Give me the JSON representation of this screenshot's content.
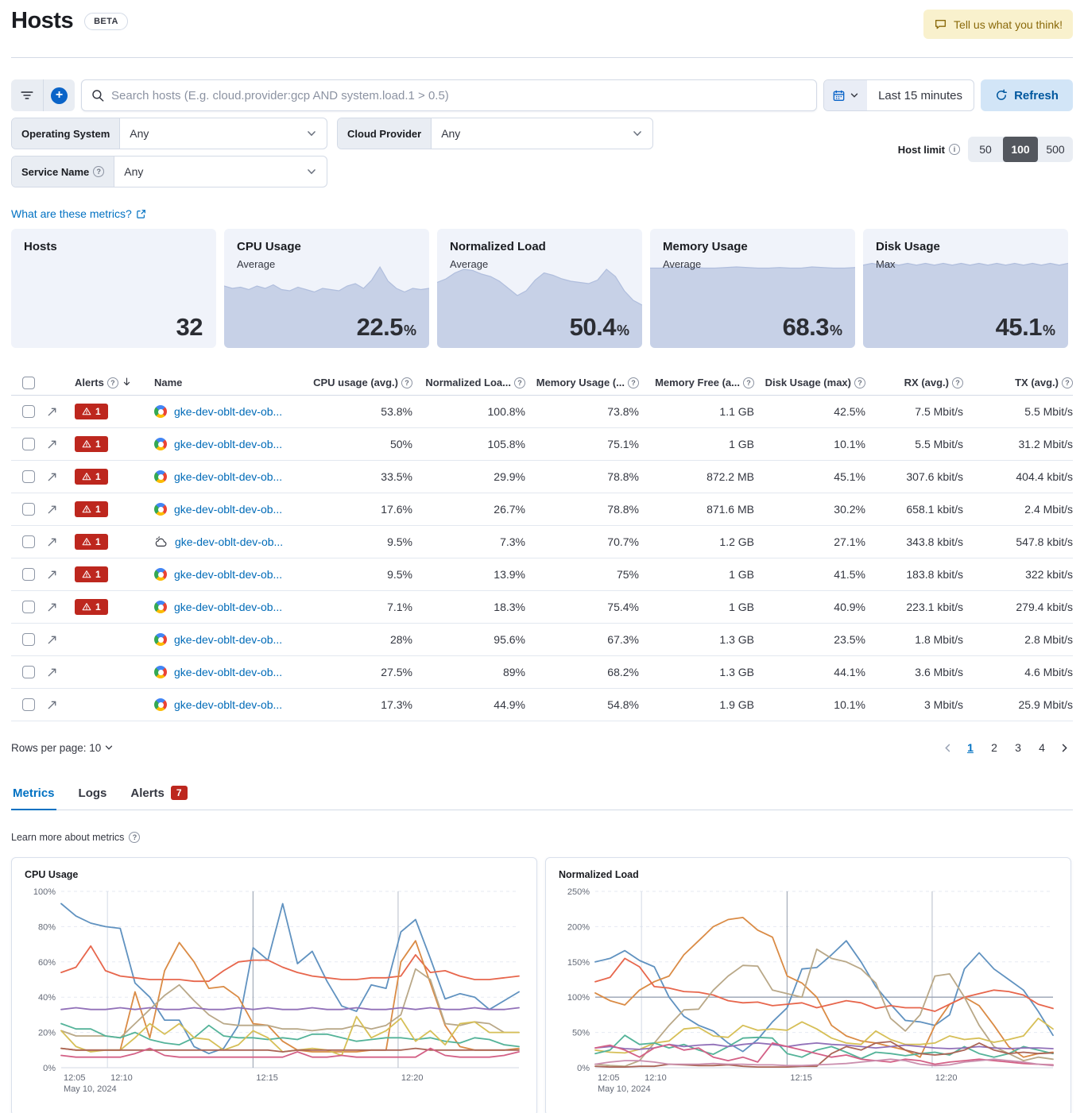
{
  "header": {
    "title": "Hosts",
    "beta": "BETA",
    "feedback": "Tell us what you think!"
  },
  "controls": {
    "search_placeholder": "Search hosts (E.g. cloud.provider:gcp AND system.load.1 > 0.5)",
    "time_range": "Last 15 minutes",
    "refresh_label": "Refresh",
    "filters": [
      {
        "label": "Operating System",
        "value": "Any"
      },
      {
        "label": "Cloud Provider",
        "value": "Any"
      },
      {
        "label": "Service Name",
        "value": "Any"
      }
    ],
    "host_limit": {
      "label": "Host limit",
      "options": [
        "50",
        "100",
        "500"
      ],
      "selected": "100"
    }
  },
  "metrics_link": "What are these metrics?",
  "kpis": [
    {
      "title": "Hosts",
      "subtitle": "",
      "value": "32",
      "unit": "",
      "spark": []
    },
    {
      "title": "CPU Usage",
      "subtitle": "Average",
      "value": "22.5",
      "unit": "%",
      "spark": [
        0.52,
        0.5,
        0.51,
        0.49,
        0.52,
        0.5,
        0.53,
        0.49,
        0.48,
        0.51,
        0.49,
        0.47,
        0.5,
        0.49,
        0.48,
        0.52,
        0.54,
        0.5,
        0.57,
        0.68,
        0.56,
        0.5,
        0.47,
        0.5,
        0.49,
        0.5
      ]
    },
    {
      "title": "Normalized Load",
      "subtitle": "Average",
      "value": "50.4",
      "unit": "%",
      "spark": [
        0.55,
        0.58,
        0.63,
        0.66,
        0.65,
        0.62,
        0.6,
        0.56,
        0.5,
        0.44,
        0.48,
        0.57,
        0.63,
        0.61,
        0.58,
        0.56,
        0.55,
        0.54,
        0.57,
        0.66,
        0.6,
        0.48,
        0.4,
        0.36
      ]
    },
    {
      "title": "Memory Usage",
      "subtitle": "Average",
      "value": "68.3",
      "unit": "%",
      "spark": [
        0.67,
        0.67,
        0.675,
        0.68,
        0.675,
        0.67,
        0.67,
        0.675,
        0.68,
        0.675,
        0.67,
        0.67,
        0.675,
        0.67,
        0.67,
        0.68,
        0.675,
        0.67,
        0.67,
        0.675
      ]
    },
    {
      "title": "Disk Usage",
      "subtitle": "Max",
      "value": "45.1",
      "unit": "%",
      "spark": [
        0.695,
        0.71,
        0.695,
        0.71,
        0.695,
        0.71,
        0.695,
        0.71,
        0.695,
        0.71,
        0.695,
        0.71,
        0.695,
        0.71,
        0.695,
        0.71,
        0.695,
        0.71,
        0.695,
        0.71,
        0.695,
        0.71,
        0.695,
        0.71
      ]
    }
  ],
  "table": {
    "columns": [
      "Alerts",
      "Name",
      "CPU usage (avg.)",
      "Normalized Loa...",
      "Memory Usage (...",
      "Memory Free (a...",
      "Disk Usage (max)",
      "RX (avg.)",
      "TX (avg.)"
    ],
    "rows": [
      {
        "alerts": "1",
        "provider": "gcp",
        "name": "gke-dev-oblt-dev-ob...",
        "cpu": "53.8%",
        "load": "100.8%",
        "mem": "73.8%",
        "free": "1.1 GB",
        "disk": "42.5%",
        "rx": "7.5 Mbit/s",
        "tx": "5.5 Mbit/s"
      },
      {
        "alerts": "1",
        "provider": "gcp",
        "name": "gke-dev-oblt-dev-ob...",
        "cpu": "50%",
        "load": "105.8%",
        "mem": "75.1%",
        "free": "1 GB",
        "disk": "10.1%",
        "rx": "5.5 Mbit/s",
        "tx": "31.2 Mbit/s"
      },
      {
        "alerts": "1",
        "provider": "gcp",
        "name": "gke-dev-oblt-dev-ob...",
        "cpu": "33.5%",
        "load": "29.9%",
        "mem": "78.8%",
        "free": "872.2 MB",
        "disk": "45.1%",
        "rx": "307.6 kbit/s",
        "tx": "404.4 kbit/s"
      },
      {
        "alerts": "1",
        "provider": "gcp",
        "name": "gke-dev-oblt-dev-ob...",
        "cpu": "17.6%",
        "load": "26.7%",
        "mem": "78.8%",
        "free": "871.6 MB",
        "disk": "30.2%",
        "rx": "658.1 kbit/s",
        "tx": "2.4 Mbit/s"
      },
      {
        "alerts": "1",
        "provider": "sketch",
        "name": "gke-dev-oblt-dev-ob...",
        "cpu": "9.5%",
        "load": "7.3%",
        "mem": "70.7%",
        "free": "1.2 GB",
        "disk": "27.1%",
        "rx": "343.8 kbit/s",
        "tx": "547.8 kbit/s"
      },
      {
        "alerts": "1",
        "provider": "gcp",
        "name": "gke-dev-oblt-dev-ob...",
        "cpu": "9.5%",
        "load": "13.9%",
        "mem": "75%",
        "free": "1 GB",
        "disk": "41.5%",
        "rx": "183.8 kbit/s",
        "tx": "322 kbit/s"
      },
      {
        "alerts": "1",
        "provider": "gcp",
        "name": "gke-dev-oblt-dev-ob...",
        "cpu": "7.1%",
        "load": "18.3%",
        "mem": "75.4%",
        "free": "1 GB",
        "disk": "40.9%",
        "rx": "223.1 kbit/s",
        "tx": "279.4 kbit/s"
      },
      {
        "alerts": "",
        "provider": "gcp",
        "name": "gke-dev-oblt-dev-ob...",
        "cpu": "28%",
        "load": "95.6%",
        "mem": "67.3%",
        "free": "1.3 GB",
        "disk": "23.5%",
        "rx": "1.8 Mbit/s",
        "tx": "2.8 Mbit/s"
      },
      {
        "alerts": "",
        "provider": "gcp",
        "name": "gke-dev-oblt-dev-ob...",
        "cpu": "27.5%",
        "load": "89%",
        "mem": "68.2%",
        "free": "1.3 GB",
        "disk": "44.1%",
        "rx": "3.6 Mbit/s",
        "tx": "4.6 Mbit/s"
      },
      {
        "alerts": "",
        "provider": "gcp",
        "name": "gke-dev-oblt-dev-ob...",
        "cpu": "17.3%",
        "load": "44.9%",
        "mem": "54.8%",
        "free": "1.9 GB",
        "disk": "10.1%",
        "rx": "3 Mbit/s",
        "tx": "25.9 Mbit/s"
      }
    ]
  },
  "pagination": {
    "rows_per_page": "Rows per page: 10",
    "pages": [
      "1",
      "2",
      "3",
      "4"
    ],
    "active": "1"
  },
  "tabs": [
    {
      "label": "Metrics",
      "active": true
    },
    {
      "label": "Logs",
      "active": false
    },
    {
      "label": "Alerts",
      "active": false,
      "badge": "7"
    }
  ],
  "learn_more": "Learn more about metrics",
  "chart_data": [
    {
      "type": "line",
      "title": "CPU Usage",
      "ylim": [
        0,
        100
      ],
      "yticks": [
        "0%",
        "20%",
        "40%",
        "60%",
        "80%",
        "100%"
      ],
      "xticks": [
        "12:05",
        "12:10",
        "12:15",
        "12:20"
      ],
      "xdate": "May 10, 2024",
      "threshold": null,
      "grid": true,
      "legend": "none",
      "series": [
        {
          "color": "#6092C0",
          "values": [
            93,
            86,
            82,
            80,
            79,
            48,
            40,
            27,
            27,
            12,
            8,
            11,
            24,
            68,
            61,
            93,
            59,
            66,
            49,
            35,
            32,
            47,
            45,
            77,
            84,
            62,
            39,
            42,
            40,
            33,
            38,
            43
          ]
        },
        {
          "color": "#E7664C",
          "values": [
            54,
            57,
            69,
            55,
            52,
            51,
            50,
            50,
            50,
            49,
            49,
            55,
            60,
            61,
            61,
            57,
            54,
            52,
            51,
            50,
            50,
            51,
            51,
            52,
            64,
            54,
            55,
            52,
            50,
            50,
            51,
            52
          ]
        },
        {
          "color": "#DA8B45",
          "values": [
            11,
            10,
            10,
            10,
            10,
            43,
            17,
            55,
            71,
            60,
            45,
            46,
            40,
            25,
            24,
            15,
            10,
            9,
            9,
            9,
            9,
            10,
            10,
            60,
            72,
            48,
            24,
            12,
            10,
            10,
            10,
            11
          ]
        },
        {
          "color": "#B9A888",
          "values": [
            21,
            18,
            18,
            18,
            17,
            25,
            33,
            41,
            47,
            38,
            30,
            25,
            24,
            24,
            24,
            22,
            22,
            21,
            22,
            22,
            24,
            22,
            24,
            30,
            56,
            50,
            25,
            24,
            26,
            25,
            20,
            20
          ]
        },
        {
          "color": "#9170B8",
          "values": [
            33,
            34,
            33,
            33,
            34,
            33,
            34,
            33,
            33,
            34,
            33,
            33,
            34,
            33,
            34,
            33,
            33,
            34,
            33,
            33,
            34,
            33,
            33,
            34,
            33,
            34,
            33,
            33,
            34,
            33,
            33,
            34
          ]
        },
        {
          "color": "#54B399",
          "values": [
            25,
            22,
            22,
            18,
            17,
            20,
            16,
            14,
            13,
            17,
            24,
            18,
            17,
            17,
            16,
            17,
            16,
            19,
            19,
            17,
            15,
            16,
            17,
            17,
            16,
            17,
            15,
            14,
            17,
            16,
            13,
            12
          ]
        },
        {
          "color": "#D6BF57",
          "values": [
            21,
            12,
            9,
            10,
            10,
            17,
            25,
            19,
            25,
            17,
            16,
            10,
            13,
            21,
            17,
            9,
            10,
            11,
            10,
            7,
            29,
            17,
            21,
            28,
            15,
            21,
            13,
            25,
            26,
            20,
            20,
            20
          ]
        },
        {
          "color": "#AA6556",
          "values": [
            11,
            10,
            10,
            10,
            10,
            10,
            10,
            10,
            10,
            10,
            10,
            10,
            10,
            10,
            10,
            9,
            10,
            10,
            10,
            10,
            10,
            10,
            10,
            10,
            11,
            10,
            10,
            10,
            10,
            10,
            10,
            10
          ]
        },
        {
          "color": "#D36086",
          "values": [
            7,
            6,
            6,
            6,
            6,
            8,
            11,
            7,
            6,
            6,
            6,
            6,
            6,
            6,
            6,
            6,
            9,
            6,
            6,
            7,
            6,
            6,
            6,
            6,
            6,
            11,
            7,
            6,
            6,
            6,
            7,
            9
          ]
        }
      ]
    },
    {
      "type": "line",
      "title": "Normalized Load",
      "ylim": [
        0,
        250
      ],
      "yticks": [
        "0%",
        "50%",
        "100%",
        "150%",
        "200%",
        "250%"
      ],
      "xticks": [
        "12:05",
        "12:10",
        "12:15",
        "12:20"
      ],
      "xdate": "May 10, 2024",
      "threshold": 100,
      "grid": true,
      "legend": "none",
      "series": [
        {
          "color": "#6092C0",
          "values": [
            150,
            155,
            166,
            152,
            143,
            100,
            73,
            60,
            52,
            35,
            23,
            40,
            65,
            85,
            140,
            142,
            160,
            180,
            150,
            115,
            90,
            67,
            65,
            60,
            75,
            140,
            163,
            140,
            125,
            110,
            80,
            46
          ]
        },
        {
          "color": "#DA8B45",
          "values": [
            106,
            95,
            89,
            110,
            122,
            130,
            160,
            180,
            200,
            210,
            213,
            195,
            185,
            130,
            120,
            100,
            60,
            45,
            38,
            35,
            30,
            25,
            15,
            60,
            90,
            100,
            88,
            60,
            30,
            15,
            20,
            22
          ]
        },
        {
          "color": "#E7664C",
          "values": [
            122,
            128,
            155,
            143,
            115,
            113,
            108,
            107,
            103,
            95,
            92,
            93,
            88,
            90,
            92,
            85,
            90,
            95,
            92,
            84,
            88,
            85,
            85,
            80,
            90,
            100,
            105,
            110,
            108,
            103,
            90,
            84
          ]
        },
        {
          "color": "#B9A888",
          "values": [
            5,
            3,
            2,
            10,
            35,
            60,
            82,
            83,
            110,
            130,
            145,
            144,
            110,
            105,
            100,
            168,
            155,
            150,
            140,
            120,
            70,
            52,
            75,
            130,
            133,
            100,
            60,
            30,
            20,
            10,
            15,
            12
          ]
        },
        {
          "color": "#D6BF57",
          "values": [
            25,
            22,
            21,
            26,
            35,
            38,
            55,
            57,
            45,
            43,
            60,
            53,
            55,
            53,
            65,
            55,
            42,
            35,
            33,
            52,
            40,
            33,
            33,
            35,
            45,
            40,
            42,
            36,
            40,
            45,
            70,
            55
          ]
        },
        {
          "color": "#54B399",
          "values": [
            20,
            25,
            46,
            33,
            35,
            28,
            33,
            25,
            19,
            30,
            42,
            43,
            42,
            20,
            15,
            25,
            30,
            22,
            13,
            22,
            20,
            17,
            20,
            22,
            18,
            30,
            20,
            15,
            20,
            30,
            25,
            20
          ]
        },
        {
          "color": "#9170B8",
          "values": [
            28,
            30,
            27,
            26,
            28,
            33,
            30,
            32,
            33,
            30,
            33,
            35,
            33,
            30,
            33,
            35,
            33,
            32,
            30,
            28,
            30,
            32,
            30,
            28,
            27,
            28,
            30,
            28,
            27,
            28,
            28,
            27
          ]
        },
        {
          "color": "#D36086",
          "values": [
            28,
            32,
            25,
            15,
            28,
            33,
            25,
            28,
            15,
            10,
            15,
            8,
            35,
            30,
            25,
            20,
            15,
            18,
            12,
            10,
            8,
            12,
            10,
            5,
            8,
            10,
            12,
            10,
            8,
            6,
            5,
            4
          ]
        },
        {
          "color": "#AA6556",
          "values": [
            2,
            1,
            1,
            2,
            2,
            5,
            4,
            3,
            3,
            4,
            2,
            1,
            1,
            1,
            2,
            2,
            20,
            30,
            25,
            35,
            37,
            25,
            20,
            18,
            20,
            25,
            35,
            25,
            20,
            22,
            20,
            21
          ]
        },
        {
          "color": "#CA8EAE",
          "values": [
            5,
            8,
            10,
            10,
            8,
            5,
            5,
            5,
            6,
            5,
            5,
            4,
            4,
            3,
            3,
            4,
            5,
            6,
            8,
            10,
            12,
            10,
            5,
            3,
            4,
            8,
            10,
            12,
            10,
            8,
            5,
            3
          ]
        }
      ]
    }
  ]
}
